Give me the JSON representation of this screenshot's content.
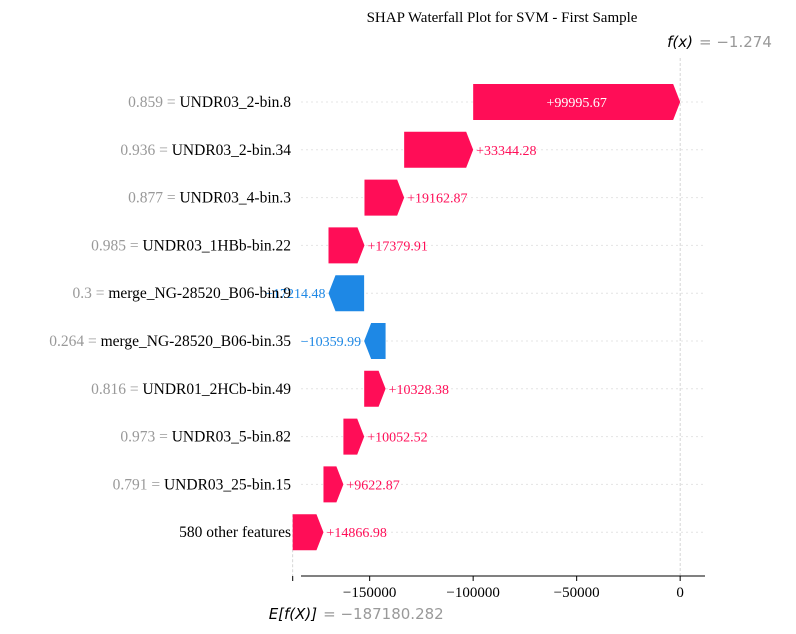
{
  "chart_data": {
    "type": "waterfall",
    "title": "SHAP Waterfall Plot for SVM - First Sample",
    "base_value_label": "E[f(X)]",
    "base_value": -187180.282,
    "base_value_text": "= −187180.282",
    "output_label": "f(x)",
    "output_value": -1.274,
    "output_value_text": "= −1.274",
    "xlim": [
      -188000,
      12000
    ],
    "x_ticks": [
      -150000,
      -100000,
      -50000,
      0
    ],
    "x_tick_labels": [
      "−150000",
      "−100000",
      "−50000",
      "0"
    ],
    "features": [
      {
        "value": "0.859",
        "name": "UNDR03_2-bin.8",
        "shap": 99995.67,
        "label": "+99995.67",
        "start": -99997,
        "end": -1.274
      },
      {
        "value": "0.936",
        "name": "UNDR03_2-bin.34",
        "shap": 33344.28,
        "label": "+33344.28",
        "start": -133341,
        "end": -99997
      },
      {
        "value": "0.877",
        "name": "UNDR03_4-bin.3",
        "shap": 19162.87,
        "label": "+19162.87",
        "start": -152504,
        "end": -133341
      },
      {
        "value": "0.985",
        "name": "UNDR03_1HBb-bin.22",
        "shap": 17379.91,
        "label": "+17379.91",
        "start": -169884,
        "end": -152504
      },
      {
        "value": "0.3",
        "name": "merge_NG-28520_B06-bin.9",
        "shap": -17214.48,
        "label": "−17214.48",
        "start": -152669,
        "end": -169884
      },
      {
        "value": "0.264",
        "name": "merge_NG-28520_B06-bin.35",
        "shap": -10359.99,
        "label": "−10359.99",
        "start": -142309,
        "end": -152669
      },
      {
        "value": "0.816",
        "name": "UNDR01_2HCb-bin.49",
        "shap": 10328.38,
        "label": "+10328.38",
        "start": -152638,
        "end": -142309
      },
      {
        "value": "0.973",
        "name": "UNDR03_5-bin.82",
        "shap": 10052.52,
        "label": "+10052.52",
        "start": -162690,
        "end": -152638
      },
      {
        "value": "0.791",
        "name": "UNDR03_25-bin.15",
        "shap": 9622.87,
        "label": "+9622.87",
        "start": -172313,
        "end": -162690
      },
      {
        "value": "",
        "name": "580 other features",
        "shap": 14866.98,
        "label": "+14866.98",
        "start": -187180.282,
        "end": -172313
      }
    ]
  },
  "colors": {
    "positive": "#ff0d57",
    "negative": "#1e88e5",
    "text": "#000000",
    "muted": "#999999",
    "grid": "#cccccc"
  }
}
